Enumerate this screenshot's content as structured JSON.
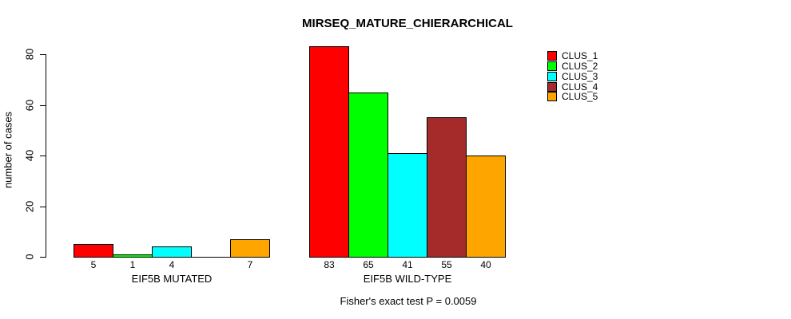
{
  "chart_data": {
    "type": "bar",
    "title": "MIRSEQ_MATURE_CHIERARCHICAL",
    "ylabel": "number of cases",
    "xlabel": "",
    "ylim": [
      0,
      80
    ],
    "yticks": [
      0,
      20,
      40,
      60,
      80
    ],
    "grid": false,
    "background_color": "#FFFFFF",
    "series_names": [
      "CLUS_1",
      "CLUS_2",
      "CLUS_3",
      "CLUS_4",
      "CLUS_5"
    ],
    "colors": [
      "#FF0000",
      "#00FF00",
      "#00FFFF",
      "#A52A2A",
      "#FFA500"
    ],
    "groups": [
      {
        "label": "EIF5B MUTATED",
        "values": [
          5,
          1,
          4,
          0,
          7
        ],
        "bar_labels": [
          "5",
          "1",
          "4",
          "",
          "7"
        ]
      },
      {
        "label": "EIF5B WILD-TYPE",
        "values": [
          83,
          65,
          41,
          55,
          40
        ],
        "bar_labels": [
          "83",
          "65",
          "41",
          "55",
          "40"
        ]
      }
    ],
    "legend": {
      "position": "top-right",
      "entries": [
        "CLUS_1",
        "CLUS_2",
        "CLUS_3",
        "CLUS_4",
        "CLUS_5"
      ]
    },
    "footnote": "Fisher's exact test P = 0.0059"
  }
}
